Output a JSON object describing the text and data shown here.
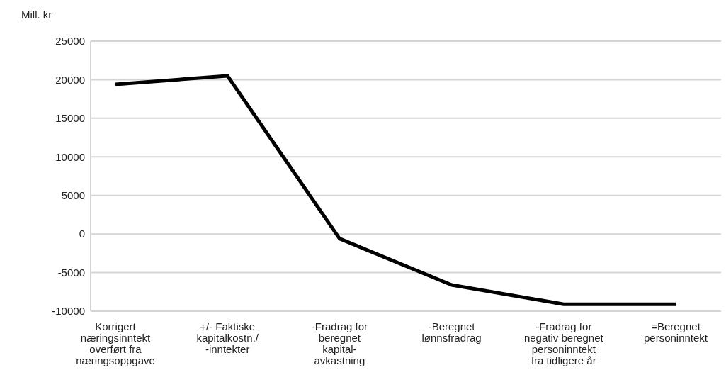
{
  "chart_data": {
    "type": "line",
    "ylabel": "Mill. kr",
    "categories": [
      "Korrigert næringsinntekt overført fra næringsoppgave",
      "+/- Faktiske kapitalkostn./ -inntekter",
      "-Fradrag for beregnet kapital-avkastning",
      "-Beregnet lønnsfradrag",
      "-Fradrag for negativ beregnet personinntekt fra tidligere år",
      "=Beregnet personinntekt"
    ],
    "series": [
      {
        "color": "#000000",
        "values": [
          19400,
          20500,
          -600,
          -6600,
          -9100,
          -9100
        ]
      }
    ],
    "ylim": [
      -10000,
      25000
    ],
    "yticks": [
      -10000,
      -5000,
      0,
      5000,
      10000,
      15000,
      20000,
      25000
    ],
    "grid": "y",
    "legend": false,
    "marker": "none",
    "line_style": "solid"
  }
}
